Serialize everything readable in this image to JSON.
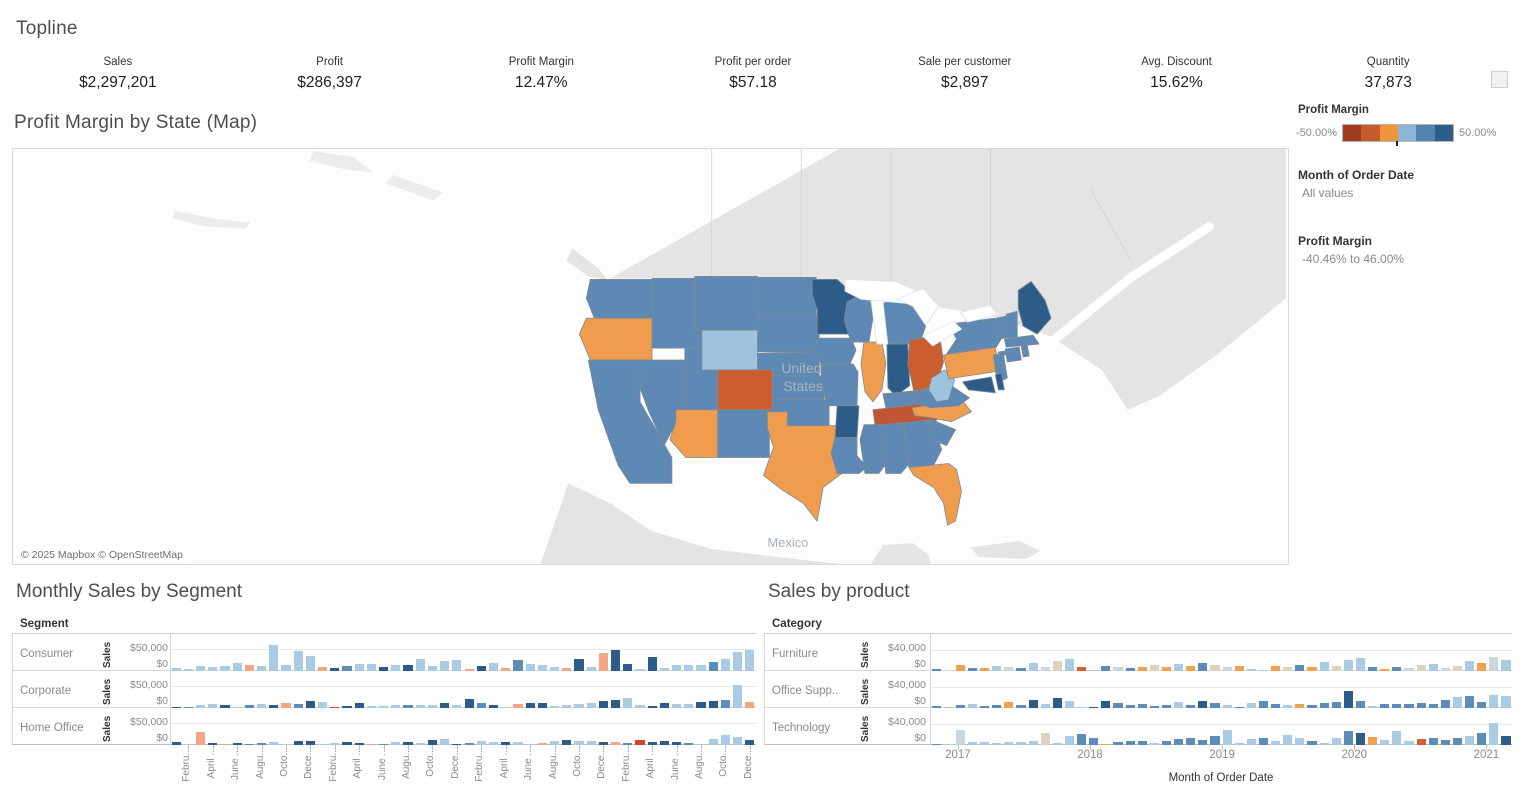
{
  "topline": {
    "title": "Topline",
    "kpis": [
      {
        "label": "Sales",
        "value": "$2,297,201"
      },
      {
        "label": "Profit",
        "value": "$286,397"
      },
      {
        "label": "Profit Margin",
        "value": "12.47%"
      },
      {
        "label": "Profit per order",
        "value": "$57.18"
      },
      {
        "label": "Sale per customer",
        "value": "$2,897"
      },
      {
        "label": "Avg. Discount",
        "value": "15.62%"
      },
      {
        "label": "Quantity",
        "value": "37,873"
      }
    ]
  },
  "colors": {
    "land": "#e4e4e4",
    "water": "#fdfdfd",
    "state_border": "#7f8a93",
    "map_palette": {
      "b": "#5d89b4",
      "d": "#2d5c88",
      "l": "#9ec3de",
      "o": "#f09c4e",
      "q": "#cb5d2e",
      "t": "#c25532"
    },
    "bar_palette": {
      "L": "#a9cbe4",
      "M": "#5d8cb8",
      "D": "#2d5c88",
      "S": "#f4a584",
      "R": "#d7402b",
      "O": "#f2a14f",
      "Q": "#d2622d",
      "E": "#ddd4c0",
      "G": "#ccd6de"
    }
  },
  "chart_data": [
    {
      "type": "choropleth_map",
      "title": "Profit Margin by State (Map)",
      "metric": "Profit Margin",
      "attribution": "© 2025 Mapbox © OpenStreetMap",
      "labels": {
        "country_line1": "United",
        "country_line2": "States",
        "mexico": "Mexico"
      },
      "legend": {
        "title": "Profit Margin",
        "min": "-50.00%",
        "max": "50.00%",
        "colors": [
          "#a03b22",
          "#c55a2b",
          "#f0943e",
          "#8ab5d6",
          "#5285ad",
          "#2e5d87"
        ]
      },
      "filters": [
        {
          "label": "Month of Order Date",
          "value": "All values"
        },
        {
          "label": "Profit Margin",
          "value": "-40.46% to 46.00%"
        }
      ],
      "state_values": {
        "WA": "b",
        "OR": "o",
        "CA": "b",
        "ID": "b",
        "NV": "b",
        "MT": "b",
        "WY": "l",
        "UT": "b",
        "CO": "q",
        "AZ": "o",
        "NM": "b",
        "ND": "b",
        "SD": "b",
        "NE": "b",
        "KS": "b",
        "OK": "b",
        "TX": "o",
        "MN": "d",
        "IA": "b",
        "MO": "b",
        "AR": "d",
        "LA": "b",
        "WI": "b",
        "IL": "o",
        "MI": "b",
        "MIUP": "b",
        "IN": "d",
        "OH": "q",
        "KY": "b",
        "TN": "t",
        "MS": "b",
        "AL": "b",
        "GA": "b",
        "FL": "o",
        "SC": "b",
        "NC": "o",
        "VA": "b",
        "WV": "l",
        "PA": "o",
        "NY": "b",
        "LI": "b",
        "NJ": "b",
        "MD": "d",
        "DE": "d",
        "VT": "b",
        "NH": "b",
        "ME": "d",
        "MA": "b",
        "CT": "b",
        "RI": "b"
      }
    },
    {
      "type": "bar",
      "title": "Monthly Sales by Segment",
      "row_header": "Segment",
      "ylabel": "Sales",
      "y_ticks": [
        "$50,000",
        "$0"
      ],
      "ymax_tick": 50000,
      "x_tick_labels": [
        "Febru..",
        "April ..",
        "June ..",
        "Augu..",
        "Octo..",
        "Dece..",
        "Febru..",
        "April ..",
        "June ..",
        "Augu..",
        "Octo..",
        "Dece..",
        "Febru..",
        "April ..",
        "June ..",
        "Augu..",
        "Octo..",
        "Dece..",
        "Febru..",
        "April ..",
        "June ..",
        "Augu..",
        "Octo..",
        "Dece.."
      ],
      "rows": [
        {
          "label": "Consumer",
          "values": [
            8000,
            4000,
            11000,
            9000,
            13000,
            19000,
            15000,
            13000,
            62000,
            14000,
            47000,
            36000,
            10000,
            7000,
            13000,
            17000,
            16000,
            10000,
            14000,
            15000,
            28000,
            13000,
            23000,
            27000,
            4000,
            12000,
            18000,
            8000,
            26000,
            16000,
            14000,
            10000,
            6000,
            28000,
            9000,
            44000,
            50000,
            16000,
            4000,
            33000,
            6000,
            14000,
            15000,
            14000,
            21000,
            28000,
            45000,
            50000
          ],
          "colors": [
            "L",
            "L",
            "L",
            "L",
            "L",
            "L",
            "S",
            "L",
            "L",
            "L",
            "L",
            "L",
            "S",
            "D",
            "M",
            "L",
            "L",
            "D",
            "L",
            "D",
            "L",
            "L",
            "L",
            "L",
            "S",
            "D",
            "L",
            "S",
            "M",
            "L",
            "L",
            "L",
            "S",
            "D",
            "L",
            "S",
            "D",
            "D",
            "L",
            "D",
            "L",
            "L",
            "L",
            "L",
            "M",
            "L",
            "L",
            "L"
          ]
        },
        {
          "label": "Corporate",
          "values": [
            2000,
            2000,
            8000,
            10000,
            7000,
            3000,
            8000,
            9000,
            6000,
            12000,
            10000,
            17000,
            14000,
            2000,
            4000,
            13000,
            5000,
            5000,
            8000,
            7000,
            6000,
            8000,
            11000,
            8000,
            21000,
            12000,
            8000,
            2000,
            10000,
            12000,
            13000,
            5000,
            8000,
            9000,
            13000,
            17000,
            20000,
            24000,
            6000,
            4000,
            12000,
            10000,
            9000,
            14000,
            16000,
            20000,
            55000,
            14000
          ],
          "colors": [
            "D",
            "M",
            "L",
            "L",
            "D",
            "L",
            "M",
            "L",
            "D",
            "S",
            "M",
            "D",
            "L",
            "R",
            "D",
            "D",
            "L",
            "L",
            "L",
            "M",
            "L",
            "L",
            "D",
            "L",
            "D",
            "M",
            "D",
            "L",
            "S",
            "D",
            "D",
            "L",
            "L",
            "L",
            "L",
            "D",
            "D",
            "L",
            "L",
            "D",
            "D",
            "L",
            "L",
            "D",
            "D",
            "M",
            "L",
            "S"
          ]
        },
        {
          "label": "Home Office",
          "values": [
            6000,
            1000,
            32000,
            5000,
            2000,
            5000,
            3000,
            4000,
            7000,
            2000,
            9000,
            10000,
            1000,
            5000,
            7000,
            4000,
            2000,
            3000,
            6000,
            8000,
            5000,
            12000,
            15000,
            3000,
            4000,
            10000,
            8000,
            6000,
            8000,
            3000,
            5000,
            9000,
            13000,
            9000,
            9000,
            6000,
            7000,
            5000,
            11000,
            7000,
            9000,
            8000,
            5000,
            2000,
            15000,
            25000,
            18000,
            12000
          ],
          "colors": [
            "D",
            "L",
            "S",
            "D",
            "S",
            "D",
            "M",
            "M",
            "L",
            "L",
            "D",
            "D",
            "L",
            "L",
            "D",
            "D",
            "S",
            "M",
            "L",
            "D",
            "L",
            "D",
            "L",
            "D",
            "M",
            "L",
            "L",
            "D",
            "L",
            "L",
            "S",
            "L",
            "D",
            "L",
            "L",
            "D",
            "S",
            "M",
            "R",
            "D",
            "D",
            "D",
            "M",
            "L",
            "L",
            "L",
            "L",
            "D"
          ]
        }
      ]
    },
    {
      "type": "bar",
      "title": "Sales by product",
      "row_header": "Category",
      "ylabel": "Sales",
      "y_ticks": [
        "$40,000",
        "$0"
      ],
      "ymax_tick": 40000,
      "x_tick_labels": [
        "2017",
        "2018",
        "2019",
        "2020",
        "2021"
      ],
      "xlabel": "Month of Order Date",
      "rows": [
        {
          "label": "Furniture",
          "values": [
            5000,
            2000,
            13000,
            7000,
            6000,
            10000,
            9000,
            6000,
            17000,
            8000,
            20000,
            25000,
            8000,
            2000,
            10000,
            9000,
            7000,
            8000,
            12000,
            9000,
            14000,
            10000,
            16000,
            12000,
            9000,
            11000,
            5000,
            2000,
            11000,
            9000,
            13000,
            8000,
            18000,
            10000,
            22000,
            26000,
            9000,
            4000,
            8000,
            6000,
            12000,
            14000,
            7000,
            10000,
            20000,
            17000,
            28000,
            22000
          ],
          "colors": [
            "M",
            "E",
            "O",
            "M",
            "O",
            "L",
            "G",
            "M",
            "L",
            "G",
            "E",
            "L",
            "Q",
            "L",
            "M",
            "G",
            "M",
            "O",
            "E",
            "O",
            "L",
            "O",
            "M",
            "E",
            "G",
            "O",
            "L",
            "L",
            "O",
            "E",
            "M",
            "O",
            "L",
            "E",
            "L",
            "L",
            "M",
            "O",
            "M",
            "G",
            "E",
            "L",
            "G",
            "E",
            "L",
            "O",
            "G",
            "L"
          ]
        },
        {
          "label": "Office Supp..",
          "values": [
            4000,
            1000,
            6000,
            8000,
            5000,
            7000,
            12000,
            6000,
            16000,
            8000,
            20000,
            14000,
            2000,
            3000,
            15000,
            10000,
            7000,
            8000,
            5000,
            7000,
            13000,
            6000,
            14000,
            11000,
            7000,
            3000,
            10000,
            14000,
            8000,
            7000,
            9000,
            6000,
            11000,
            13000,
            35000,
            14000,
            5000,
            9000,
            9000,
            9000,
            11000,
            9000,
            16000,
            22000,
            25000,
            12000,
            26000,
            24000
          ],
          "colors": [
            "M",
            "L",
            "M",
            "L",
            "M",
            "M",
            "O",
            "M",
            "D",
            "L",
            "D",
            "L",
            "L",
            "D",
            "D",
            "M",
            "M",
            "M",
            "M",
            "M",
            "L",
            "M",
            "D",
            "M",
            "L",
            "M",
            "L",
            "M",
            "M",
            "L",
            "O",
            "M",
            "M",
            "M",
            "D",
            "M",
            "L",
            "M",
            "M",
            "M",
            "M",
            "M",
            "M",
            "L",
            "M",
            "M",
            "L",
            "L"
          ]
        },
        {
          "label": "Technology",
          "values": [
            3000,
            1000,
            30000,
            6000,
            7000,
            5000,
            6000,
            7000,
            8000,
            25000,
            4000,
            18000,
            22000,
            14000,
            2000,
            6000,
            8000,
            8000,
            5000,
            8000,
            12000,
            14000,
            10000,
            18000,
            30000,
            4000,
            12000,
            15000,
            9000,
            20000,
            14000,
            8000,
            5000,
            15000,
            28000,
            25000,
            16000,
            10000,
            28000,
            9000,
            12000,
            15000,
            10000,
            14000,
            18000,
            25000,
            45000,
            18000
          ],
          "colors": [
            "M",
            "L",
            "G",
            "L",
            "L",
            "L",
            "L",
            "L",
            "L",
            "E",
            "L",
            "L",
            "M",
            "M",
            "O",
            "M",
            "M",
            "M",
            "L",
            "M",
            "M",
            "M",
            "M",
            "M",
            "L",
            "L",
            "L",
            "M",
            "L",
            "L",
            "L",
            "M",
            "L",
            "L",
            "M",
            "D",
            "O",
            "L",
            "L",
            "L",
            "Q",
            "M",
            "M",
            "M",
            "L",
            "M",
            "L",
            "D"
          ]
        }
      ]
    }
  ]
}
